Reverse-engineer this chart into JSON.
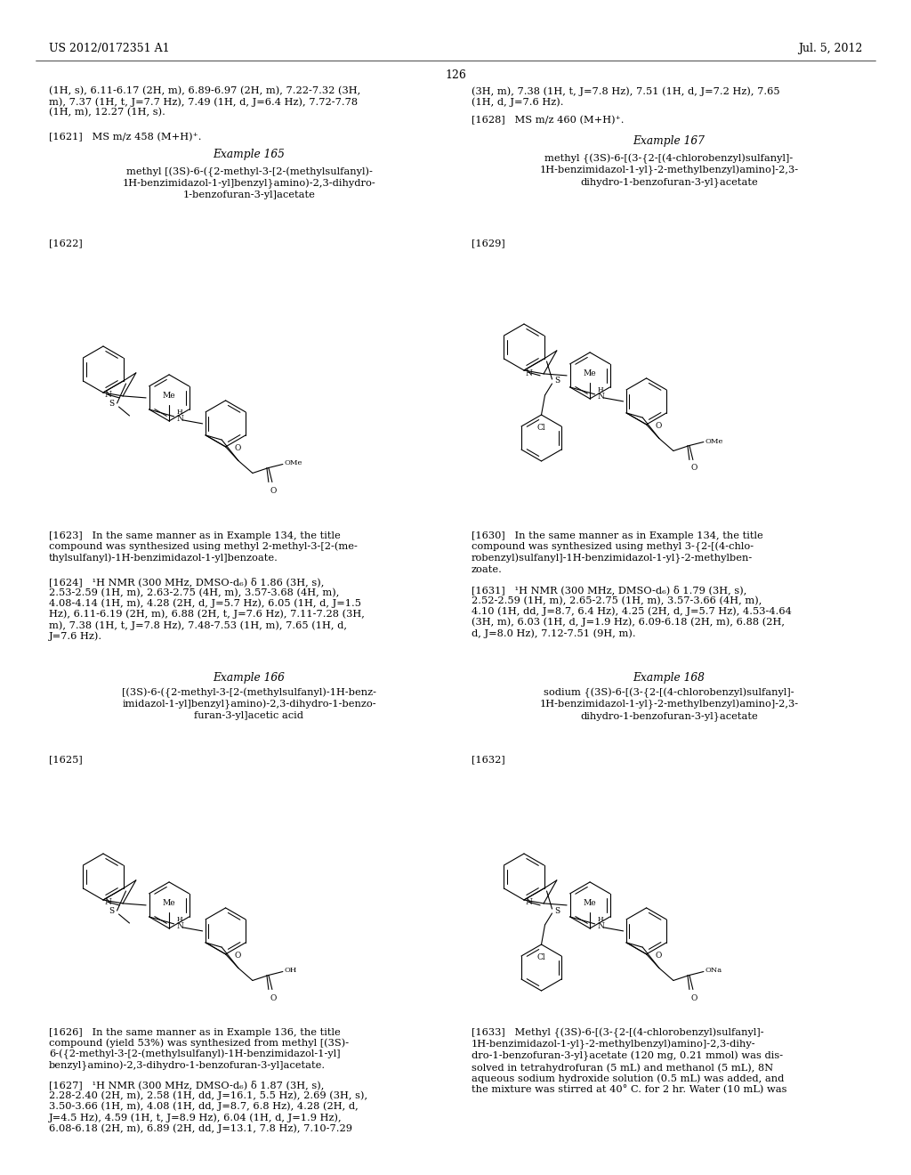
{
  "background_color": "#ffffff",
  "header_left": "US 2012/0172351 A1",
  "header_right": "Jul. 5, 2012",
  "page_number": "126"
}
